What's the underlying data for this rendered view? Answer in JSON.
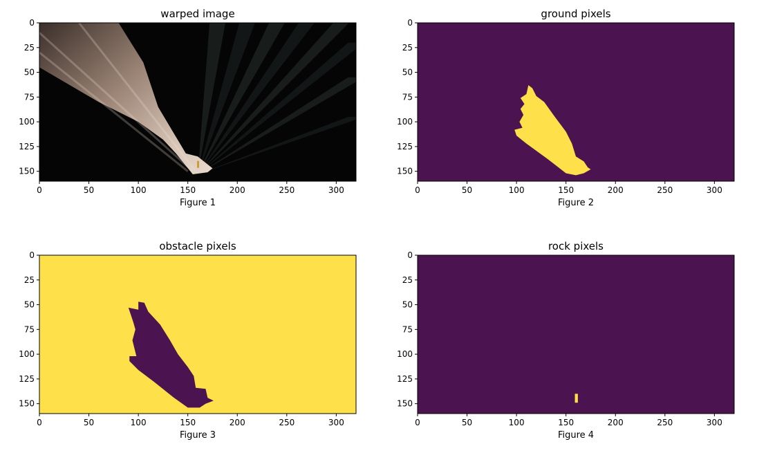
{
  "colors": {
    "viridis_low": "#440154",
    "viridis_high": "#fde725",
    "plot_purple": "#4b1450",
    "plot_yellow": "#fde04a",
    "axis": "#000000"
  },
  "chart_data": [
    {
      "type": "heatmap",
      "title": "warped image",
      "xlabel": "Figure 1",
      "ylabel": "",
      "xlim": [
        0,
        320
      ],
      "ylim": [
        160,
        0
      ],
      "xticks": [
        0,
        50,
        100,
        150,
        200,
        250,
        300
      ],
      "yticks": [
        0,
        25,
        50,
        75,
        100,
        125,
        150
      ],
      "image": "rgb perspective-warped camera view: black background with a bright sandy wedge fanning up-left from the bottom center, faint dark rays to the right, small yellow speck near x=160",
      "highlight_polygon": [
        [
          155,
          153
        ],
        [
          170,
          151
        ],
        [
          175,
          147
        ],
        [
          160,
          135
        ],
        [
          148,
          132
        ],
        [
          120,
          85
        ],
        [
          105,
          40
        ],
        [
          80,
          0
        ],
        [
          0,
          0
        ],
        [
          0,
          45
        ],
        [
          60,
          80
        ],
        [
          100,
          100
        ],
        [
          125,
          118
        ],
        [
          138,
          132
        ]
      ],
      "speck": {
        "x": 160,
        "y": 143
      }
    },
    {
      "type": "heatmap",
      "title": "ground pixels",
      "xlabel": "Figure 2",
      "ylabel": "",
      "xlim": [
        0,
        320
      ],
      "ylim": [
        160,
        0
      ],
      "xticks": [
        0,
        50,
        100,
        150,
        200,
        250,
        300
      ],
      "yticks": [
        0,
        25,
        50,
        75,
        100,
        125,
        150
      ],
      "background_value": 0,
      "mask_value": 1,
      "mask_polygon": [
        [
          112,
          63
        ],
        [
          116,
          66
        ],
        [
          120,
          74
        ],
        [
          128,
          80
        ],
        [
          138,
          94
        ],
        [
          150,
          110
        ],
        [
          156,
          122
        ],
        [
          160,
          135
        ],
        [
          168,
          140
        ],
        [
          172,
          146
        ],
        [
          175,
          148
        ],
        [
          168,
          152
        ],
        [
          160,
          154
        ],
        [
          150,
          152
        ],
        [
          132,
          138
        ],
        [
          110,
          122
        ],
        [
          100,
          114
        ],
        [
          98,
          108
        ],
        [
          106,
          106
        ],
        [
          103,
          100
        ],
        [
          107,
          93
        ],
        [
          104,
          87
        ],
        [
          108,
          82
        ],
        [
          104,
          76
        ],
        [
          110,
          72
        ]
      ]
    },
    {
      "type": "heatmap",
      "title": "obstacle pixels",
      "xlabel": "Figure 3",
      "ylabel": "",
      "xlim": [
        0,
        320
      ],
      "ylim": [
        160,
        0
      ],
      "xticks": [
        0,
        50,
        100,
        150,
        200,
        250,
        300
      ],
      "yticks": [
        0,
        25,
        50,
        75,
        100,
        125,
        150
      ],
      "background_value": 1,
      "mask_value": 0,
      "mask_polygon": [
        [
          90,
          53
        ],
        [
          100,
          55
        ],
        [
          100,
          47
        ],
        [
          106,
          48
        ],
        [
          110,
          57
        ],
        [
          122,
          70
        ],
        [
          132,
          86
        ],
        [
          140,
          100
        ],
        [
          150,
          113
        ],
        [
          156,
          122
        ],
        [
          158,
          134
        ],
        [
          168,
          135
        ],
        [
          170,
          144
        ],
        [
          176,
          147
        ],
        [
          168,
          150
        ],
        [
          162,
          154
        ],
        [
          150,
          154
        ],
        [
          136,
          144
        ],
        [
          116,
          128
        ],
        [
          100,
          116
        ],
        [
          91,
          107
        ],
        [
          91,
          102
        ],
        [
          98,
          102
        ],
        [
          94,
          86
        ],
        [
          97,
          75
        ],
        [
          95,
          68
        ]
      ]
    },
    {
      "type": "heatmap",
      "title": "rock pixels",
      "xlabel": "Figure 4",
      "ylabel": "",
      "xlim": [
        0,
        320
      ],
      "ylim": [
        160,
        0
      ],
      "xticks": [
        0,
        50,
        100,
        150,
        200,
        250,
        300
      ],
      "yticks": [
        0,
        25,
        50,
        75,
        100,
        125,
        150
      ],
      "background_value": 0,
      "mask_value": 1,
      "mask_polygon": [
        [
          159,
          140
        ],
        [
          162,
          140
        ],
        [
          162,
          149
        ],
        [
          159,
          149
        ]
      ]
    }
  ]
}
